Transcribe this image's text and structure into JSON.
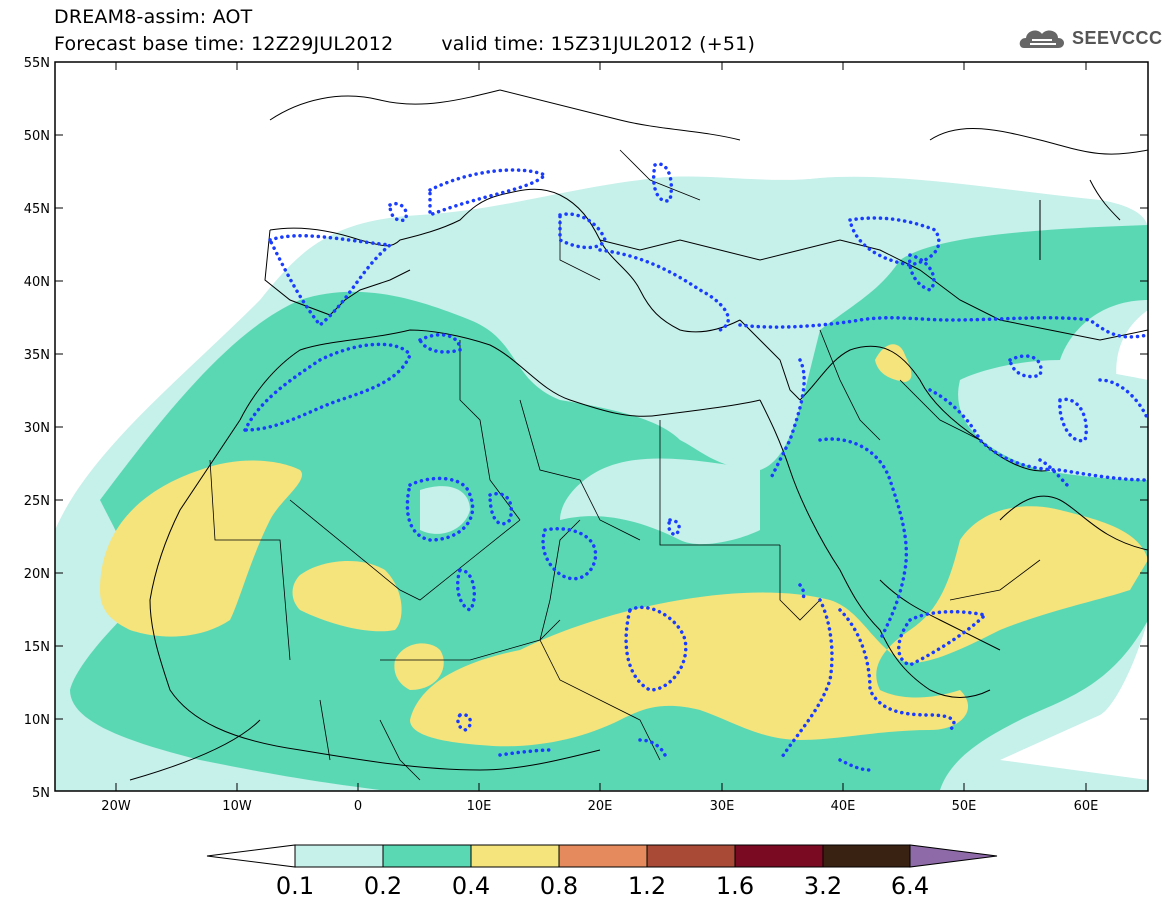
{
  "header": {
    "title": "DREAM8-assim: AOT",
    "base_time": "Forecast base time: 12Z29JUL2012",
    "valid_time": "valid time: 15Z31JUL2012 (+51)"
  },
  "logo": {
    "text": "SEEVCCC",
    "icon": "cloud-logo-icon"
  },
  "map": {
    "lon_range": [
      -25,
      65
    ],
    "lat_range": [
      5,
      55
    ],
    "lat_ticks": [
      "55N",
      "50N",
      "45N",
      "40N",
      "35N",
      "30N",
      "25N",
      "20N",
      "15N",
      "10N",
      "5N"
    ],
    "lon_ticks": [
      "20W",
      "10W",
      "0",
      "10E",
      "20E",
      "30E",
      "40E",
      "50E",
      "60E"
    ],
    "contour_style": "blue dotted"
  },
  "legend": {
    "colors": {
      "bin_0": "#c6f0ea",
      "bin_1": "#5ad8b4",
      "bin_2": "#f5e37c",
      "bin_3": "#e58a5c",
      "bin_4": "#a84a36",
      "bin_5": "#7a0a22",
      "bin_6": "#3a2212",
      "over": "#8e6aa8"
    },
    "labels": [
      "0.1",
      "0.2",
      "0.4",
      "0.8",
      "1.2",
      "1.6",
      "3.2",
      "6.4"
    ]
  }
}
